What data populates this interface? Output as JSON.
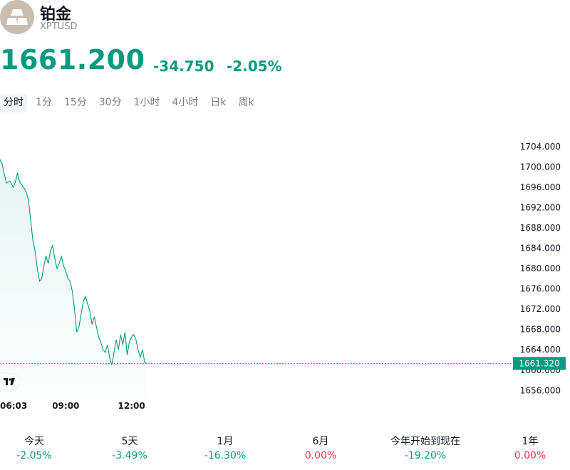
{
  "header": {
    "name": "铂金",
    "symbol": "XPTUSD",
    "logo_icon": "platinum-bars-icon",
    "logo_color": "#c9bdb0"
  },
  "quote": {
    "price": "1661.200",
    "change": "-34.750",
    "change_pct": "-2.05%",
    "color": "#089981"
  },
  "tabs": [
    {
      "label": "分时",
      "active": true
    },
    {
      "label": "1分",
      "active": false
    },
    {
      "label": "15分",
      "active": false
    },
    {
      "label": "30分",
      "active": false
    },
    {
      "label": "1小时",
      "active": false
    },
    {
      "label": "4小时",
      "active": false
    },
    {
      "label": "日k",
      "active": false
    },
    {
      "label": "周k",
      "active": false
    }
  ],
  "chart_data": {
    "type": "area",
    "title": "",
    "xlabel": "",
    "ylabel": "",
    "line_color": "#089981",
    "ylim": [
      1654.5,
      1706.5
    ],
    "y_ticks": [
      "1704.000",
      "1700.000",
      "1696.000",
      "1692.000",
      "1688.000",
      "1684.000",
      "1680.000",
      "1676.000",
      "1672.000",
      "1668.000",
      "1664.000",
      "1660.000",
      "1656.000"
    ],
    "x_tick_labels": [
      "06:03",
      "09:00",
      "12:00"
    ],
    "x_ticks_hours": [
      6.05,
      9.0,
      12.0
    ],
    "xlim_hours": [
      6.0,
      32.0
    ],
    "current_value": 1661.32,
    "current_label": "1661.320",
    "grid": false,
    "series": [
      {
        "x_hours": [
          6.0,
          6.1,
          6.2,
          6.3,
          6.45,
          6.6,
          6.7,
          6.8,
          6.9,
          7.0,
          7.1,
          7.2,
          7.3,
          7.4,
          7.5,
          7.6,
          7.7,
          7.8,
          7.9,
          8.0,
          8.1,
          8.2,
          8.3,
          8.4,
          8.5,
          8.6,
          8.7,
          8.8,
          8.9,
          9.0,
          9.1,
          9.2,
          9.3,
          9.4,
          9.5,
          9.6,
          9.7,
          9.8,
          9.9,
          10.0,
          10.1,
          10.2,
          10.3,
          10.4,
          10.5,
          10.6,
          10.7,
          10.8,
          10.9,
          11.0,
          11.1,
          11.2,
          11.3,
          11.4,
          11.5,
          11.6,
          11.7,
          11.8,
          11.9,
          12.0,
          12.1,
          12.2,
          12.3,
          12.4,
          12.5,
          12.6,
          12.7
        ],
        "values": [
          1701.5,
          1700.5,
          1698.5,
          1696.8,
          1697.2,
          1696.0,
          1697.0,
          1698.8,
          1697.0,
          1696.5,
          1695.8,
          1695.0,
          1693.5,
          1689.5,
          1685.5,
          1683.5,
          1680.0,
          1677.5,
          1678.0,
          1680.5,
          1682.5,
          1681.0,
          1683.5,
          1684.5,
          1682.0,
          1680.0,
          1681.0,
          1682.5,
          1680.5,
          1679.5,
          1678.0,
          1677.5,
          1675.5,
          1672.0,
          1667.5,
          1668.5,
          1671.0,
          1673.5,
          1674.5,
          1673.0,
          1671.5,
          1669.0,
          1670.5,
          1668.5,
          1666.5,
          1665.5,
          1664.0,
          1663.5,
          1665.0,
          1662.5,
          1661.0,
          1663.5,
          1666.0,
          1664.0,
          1667.0,
          1665.0,
          1667.5,
          1663.0,
          1665.5,
          1666.5,
          1667.0,
          1666.0,
          1664.0,
          1662.5,
          1664.0,
          1661.5,
          1661.3
        ]
      }
    ]
  },
  "performance": [
    {
      "label": "今天",
      "value": "-2.05%",
      "color": "#089981"
    },
    {
      "label": "5天",
      "value": "-3.49%",
      "color": "#089981"
    },
    {
      "label": "1月",
      "value": "-16.30%",
      "color": "#089981"
    },
    {
      "label": "6月",
      "value": "0.00%",
      "color": "#f23645"
    },
    {
      "label": "今年开始到现在",
      "value": "-19.20%",
      "color": "#089981"
    },
    {
      "label": "1年",
      "value": "0.00%",
      "color": "#f23645"
    }
  ]
}
